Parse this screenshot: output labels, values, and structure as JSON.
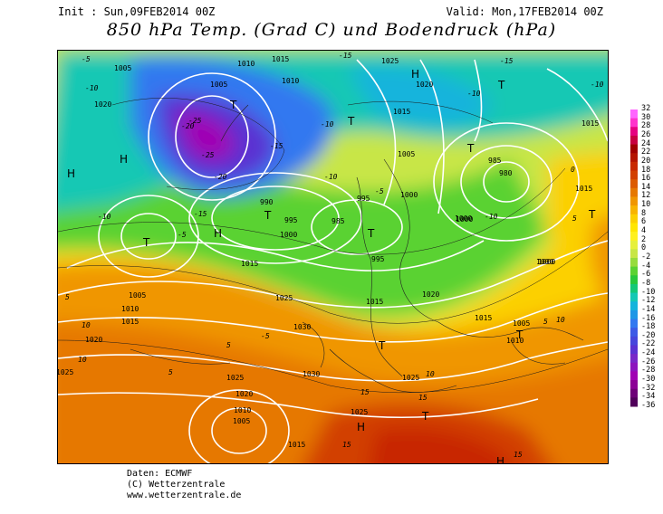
{
  "header": {
    "init": "Init : Sun,09FEB2014 00Z",
    "valid": "Valid: Mon,17FEB2014 00Z",
    "title": "850 hPa Temp. (Grad C) und Bodendruck (hPa)"
  },
  "legend": {
    "labels": [
      "32",
      "30",
      "28",
      "26",
      "24",
      "22",
      "20",
      "18",
      "16",
      "14",
      "12",
      "10",
      "8",
      "6",
      "4",
      "2",
      "0",
      "-2",
      "-4",
      "-6",
      "-8",
      "-10",
      "-12",
      "-14",
      "-16",
      "-18",
      "-20",
      "-22",
      "-24",
      "-26",
      "-28",
      "-30",
      "-32",
      "-34",
      "-36"
    ],
    "colors": [
      "#ff66ff",
      "#ff33cc",
      "#e60080",
      "#c80040",
      "#a00000",
      "#b41400",
      "#c82800",
      "#d24000",
      "#dc5a00",
      "#e67800",
      "#f09600",
      "#f8b400",
      "#fcd000",
      "#ffe600",
      "#fff01e",
      "#e6f03c",
      "#c8e646",
      "#96dc3c",
      "#5ad232",
      "#28c83c",
      "#14c878",
      "#14c8b4",
      "#14b4dc",
      "#1e96e6",
      "#3278f0",
      "#3c5ae6",
      "#4646dc",
      "#5a32d2",
      "#7828c8",
      "#8c14be",
      "#a000b4",
      "#8c0096",
      "#6e0078",
      "#50005a"
    ]
  },
  "map": {
    "pressure_labels": [
      {
        "t": "1005"
      },
      {
        "t": "1010"
      },
      {
        "t": "1015"
      },
      {
        "t": "1020"
      },
      {
        "t": "1025"
      },
      {
        "t": "1030"
      },
      {
        "t": "1000"
      },
      {
        "t": "995"
      },
      {
        "t": "990"
      },
      {
        "t": "985"
      },
      {
        "t": "980"
      }
    ],
    "temperature_labels": [
      "-5",
      "-10",
      "-15",
      "-20",
      "-25",
      "0",
      "5",
      "10",
      "15"
    ],
    "centers": [
      "H",
      "T"
    ]
  },
  "credits": {
    "line1": "Daten: ECMWF",
    "line2": "(C) Wetterzentrale",
    "line3": "www.wetterzentrale.de"
  }
}
